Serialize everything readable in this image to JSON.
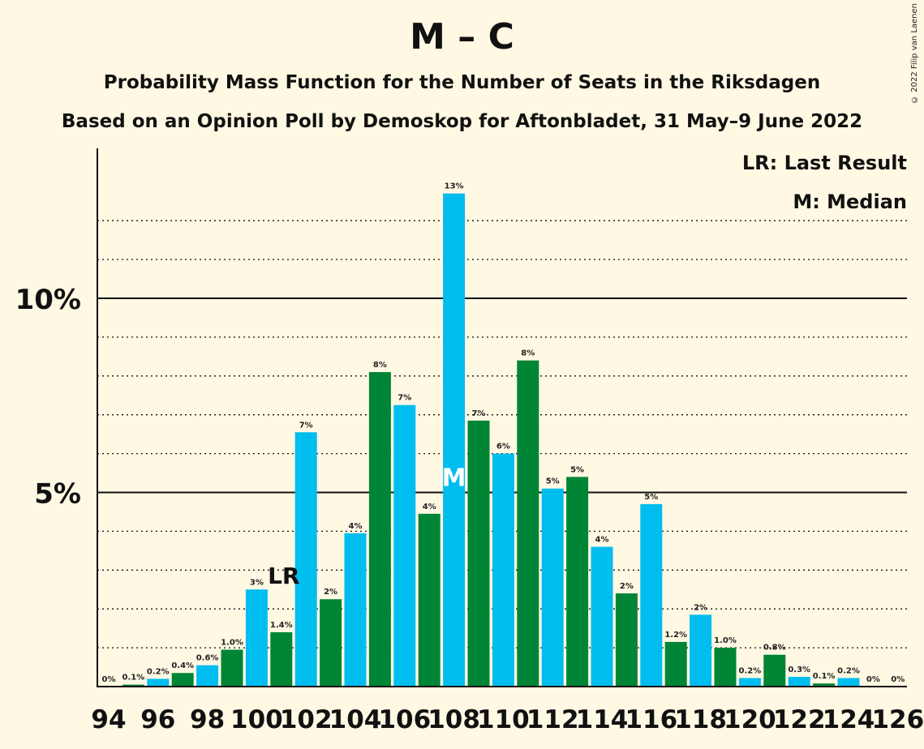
{
  "title": "M – C",
  "subtitle1": "Probability Mass Function for the Number of Seats in the Riksdagen",
  "subtitle2": "Based on an Opinion Poll by Demoskop for Aftonbladet, 31 May–9 June 2022",
  "copyright": "© 2022 Filip van Laenen",
  "legend": {
    "last_result": "LR: Last Result",
    "median": "M: Median"
  },
  "colors": {
    "blue": "#00bdef",
    "green": "#008536",
    "background": "#fff8e3"
  },
  "chart_data": {
    "type": "bar",
    "x": [
      94,
      95,
      96,
      97,
      98,
      99,
      100,
      101,
      102,
      103,
      104,
      105,
      106,
      107,
      108,
      109,
      110,
      111,
      112,
      113,
      114,
      115,
      116,
      117,
      118,
      119,
      120,
      121,
      122,
      123,
      124,
      125,
      126
    ],
    "values": [
      0,
      0.05,
      0.2,
      0.35,
      0.55,
      0.95,
      2.5,
      1.4,
      6.55,
      2.25,
      3.95,
      8.1,
      7.25,
      4.45,
      12.7,
      6.85,
      6.0,
      8.4,
      5.1,
      5.4,
      3.6,
      2.4,
      4.7,
      1.15,
      1.85,
      1.0,
      0.22,
      0.82,
      0.25,
      0.08,
      0.22,
      0,
      0
    ],
    "value_labels": [
      "0%",
      "0.1%",
      "0.2%",
      "0.4%",
      "0.6%",
      "1.0%",
      "3%",
      "1.4%",
      "7%",
      "2%",
      "4%",
      "8%",
      "7%",
      "4%",
      "13%",
      "7%",
      "6%",
      "8%",
      "5%",
      "5%",
      "4%",
      "2%",
      "5%",
      "1.2%",
      "2%",
      "1.0%",
      "0.2%",
      "0.8%",
      "0.3%",
      "0.1%",
      "0.2%",
      "0%",
      "0%"
    ],
    "tick_labels": [
      "94",
      "96",
      "98",
      "100",
      "102",
      "104",
      "106",
      "108",
      "110",
      "112",
      "114",
      "116",
      "118",
      "120",
      "122",
      "124",
      "126"
    ],
    "y_tick_labels": [
      "5%",
      "10%"
    ],
    "y_major_ticks": [
      5,
      10
    ],
    "ylim": [
      0,
      13.8
    ],
    "last_result_seat": 101,
    "last_result_label": "LR",
    "median_seat": 108,
    "median_label": "M",
    "grid": true
  }
}
